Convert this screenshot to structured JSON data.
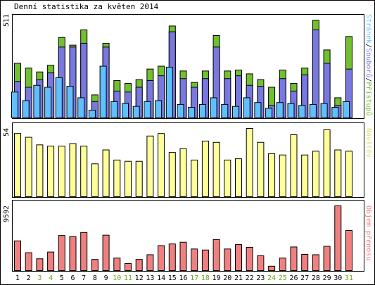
{
  "chart_data": {
    "type": "bar",
    "title": "Denní statistika za květen 2014",
    "categories": [
      "1",
      "2",
      "3",
      "4",
      "5",
      "6",
      "7",
      "8",
      "9",
      "10",
      "11",
      "12",
      "13",
      "14",
      "15",
      "16",
      "17",
      "18",
      "19",
      "20",
      "21",
      "22",
      "23",
      "24",
      "25",
      "26",
      "27",
      "28",
      "29",
      "30",
      "31"
    ],
    "weekend_categories": [
      "3",
      "4",
      "10",
      "11",
      "17",
      "18",
      "24",
      "25",
      "31"
    ],
    "colors": {
      "pristupu": "#70c030",
      "souboru": "#7878e0",
      "stranek": "#60c0ff",
      "navstev": "#ffff99",
      "objem": "#f08080",
      "weekday_label": "#000000",
      "weekend_label": "#6aa81e"
    },
    "panels": [
      {
        "id": "top",
        "ymax_label": "511",
        "ymax": 511,
        "right_label_parts": [
          {
            "text": "Stránek",
            "color": "#60c0ff"
          },
          {
            "text": "/",
            "color": "#000000"
          },
          {
            "text": "Souborů",
            "color": "#7878e0"
          },
          {
            "text": "/",
            "color": "#000000"
          },
          {
            "text": "Přístupů",
            "color": "#70c030"
          }
        ],
        "series": [
          {
            "name": "Přístupů",
            "values": [
              285,
              260,
              240,
              275,
              420,
              380,
              460,
              120,
              390,
              195,
              180,
              200,
              255,
              270,
              480,
              245,
              185,
              245,
              430,
              245,
              250,
              230,
              200,
              160,
              250,
              180,
              260,
              510,
              355,
              105,
              425
            ]
          },
          {
            "name": "Souborů",
            "values": [
              190,
              160,
              200,
              235,
              370,
              370,
              390,
              85,
              370,
              140,
              135,
              160,
              195,
              220,
              450,
              205,
              160,
              205,
              370,
              205,
              220,
              170,
              165,
              65,
              205,
              140,
              225,
              460,
              285,
              65,
              255
            ]
          },
          {
            "name": "Stránek",
            "values": [
              135,
              90,
              170,
              160,
              210,
              165,
              105,
              40,
              270,
              85,
              75,
              60,
              85,
              90,
              265,
              70,
              55,
              70,
              105,
              70,
              60,
              105,
              80,
              50,
              80,
              75,
              65,
              70,
              75,
              55,
              85
            ]
          }
        ]
      },
      {
        "id": "mid",
        "ymax_label": "54",
        "ymax": 54,
        "right_label_parts": [
          {
            "text": "Návštěv",
            "color": "#e0e070"
          }
        ],
        "series": [
          {
            "name": "Návštěv",
            "values": [
              50,
              47,
              41,
              40,
              40,
              42,
              40,
              26,
              37,
              29,
              28,
              28,
              48,
              50,
              35,
              38,
              29,
              44,
              43,
              29,
              30,
              54,
              43,
              34,
              33,
              49,
              33,
              36,
              53,
              37,
              36
            ]
          }
        ]
      },
      {
        "id": "bot",
        "ymax_label": "9592",
        "ymax": 9592,
        "right_label_parts": [
          {
            "text": "Objem přenosu",
            "color": "#f08080"
          }
        ],
        "series": [
          {
            "name": "Objem přenosu",
            "values": [
              4400,
              2650,
              1750,
              2750,
              5200,
              5050,
              5650,
              1650,
              5250,
              1850,
              1050,
              1650,
              2350,
              3700,
              3950,
              4200,
              3200,
              3050,
              4600,
              3200,
              3850,
              3450,
              2200,
              650,
              1850,
              3500,
              2400,
              2350,
              3600,
              9592,
              5950
            ]
          }
        ]
      }
    ]
  }
}
